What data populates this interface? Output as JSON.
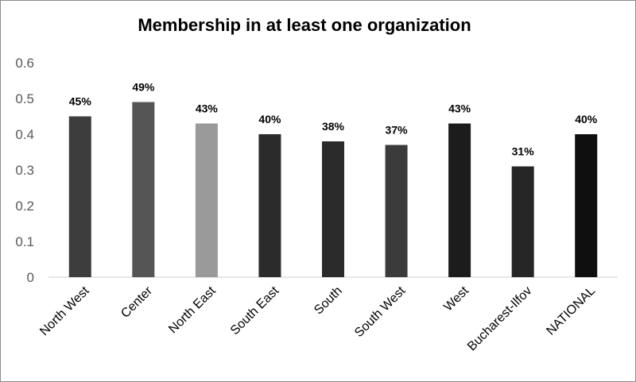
{
  "chart_data": {
    "type": "bar",
    "title": "Membership in at least one organization",
    "categories": [
      "North West",
      "Center",
      "North East",
      "South East",
      "South",
      "South West",
      "West",
      "Bucharest-Ilfov",
      "NATIONAL"
    ],
    "values": [
      0.45,
      0.49,
      0.43,
      0.4,
      0.38,
      0.37,
      0.43,
      0.31,
      0.4
    ],
    "data_labels": [
      "45%",
      "49%",
      "43%",
      "40%",
      "38%",
      "37%",
      "43%",
      "31%",
      "40%"
    ],
    "bar_colors": [
      "#3d3d3d",
      "#555555",
      "#9a9a9a",
      "#2b2b2b",
      "#2b2b2b",
      "#3b3b3b",
      "#1c1c1c",
      "#262626",
      "#0f0f0f"
    ],
    "ylim": [
      0,
      0.6
    ],
    "yticks": [
      "0",
      "0.1",
      "0.2",
      "0.3",
      "0.4",
      "0.5",
      "0.6"
    ],
    "ytick_values": [
      0,
      0.1,
      0.2,
      0.3,
      0.4,
      0.5,
      0.6
    ],
    "xlabel": "",
    "ylabel": "",
    "grid": false,
    "legend": "none"
  }
}
